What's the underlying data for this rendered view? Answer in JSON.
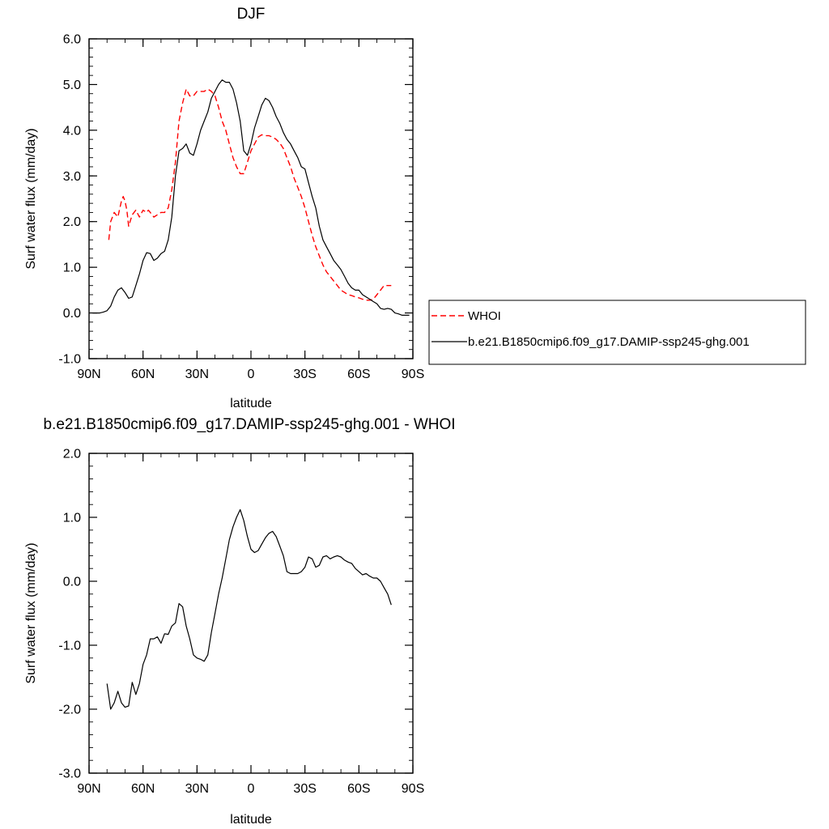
{
  "chart_data": [
    {
      "type": "line",
      "title": "DJF",
      "xlabel": "latitude",
      "ylabel": "Surf water flux (mm/day)",
      "xlim": [
        90,
        -90
      ],
      "ylim": [
        -1.0,
        6.0
      ],
      "x_ticks": [
        90,
        60,
        30,
        0,
        -30,
        -60,
        -90
      ],
      "x_tick_labels": [
        "90N",
        "60N",
        "30N",
        "0",
        "30S",
        "60S",
        "90S"
      ],
      "y_ticks": [
        -1.0,
        0.0,
        1.0,
        2.0,
        3.0,
        4.0,
        5.0,
        6.0
      ],
      "y_tick_labels": [
        "-1.0",
        "0.0",
        "1.0",
        "2.0",
        "3.0",
        "4.0",
        "5.0",
        "6.0"
      ],
      "grid": false,
      "legend_position": "right",
      "series": [
        {
          "name": "WHOI",
          "color": "#ff0000",
          "dash": "dashed",
          "x": [
            79,
            78,
            76,
            74,
            72,
            71,
            70,
            69,
            68,
            66,
            64,
            62,
            60,
            58,
            57,
            56,
            54,
            52,
            50,
            48,
            46,
            44,
            42,
            40,
            38,
            36,
            34,
            32,
            30,
            28,
            26,
            24,
            22,
            20,
            18,
            16,
            14,
            12,
            10,
            8,
            6,
            4,
            2,
            0,
            -2,
            -4,
            -6,
            -8,
            -10,
            -12,
            -14,
            -16,
            -18,
            -20,
            -22,
            -24,
            -26,
            -28,
            -30,
            -32,
            -34,
            -36,
            -38,
            -40,
            -42,
            -44,
            -46,
            -48,
            -50,
            -52,
            -54,
            -56,
            -58,
            -60,
            -62,
            -64,
            -66,
            -68,
            -70,
            -72,
            -74,
            -76,
            -78
          ],
          "y": [
            1.6,
            2.0,
            2.2,
            2.1,
            2.45,
            2.55,
            2.45,
            2.25,
            1.9,
            2.15,
            2.25,
            2.1,
            2.25,
            2.2,
            2.25,
            2.2,
            2.1,
            2.15,
            2.2,
            2.2,
            2.3,
            2.7,
            3.3,
            4.2,
            4.6,
            4.9,
            4.75,
            4.75,
            4.85,
            4.85,
            4.85,
            4.9,
            4.85,
            4.75,
            4.5,
            4.2,
            4.0,
            3.7,
            3.4,
            3.2,
            3.05,
            3.05,
            3.3,
            3.55,
            3.7,
            3.85,
            3.9,
            3.88,
            3.88,
            3.85,
            3.8,
            3.72,
            3.6,
            3.4,
            3.2,
            2.95,
            2.75,
            2.55,
            2.3,
            2.0,
            1.7,
            1.45,
            1.25,
            1.05,
            0.9,
            0.8,
            0.7,
            0.6,
            0.5,
            0.45,
            0.4,
            0.38,
            0.35,
            0.33,
            0.3,
            0.28,
            0.28,
            0.3,
            0.4,
            0.5,
            0.6,
            0.6,
            0.6
          ]
        },
        {
          "name": "b.e21.B1850cmip6.f09_g17.DAMIP-ssp245-ghg.001",
          "color": "#000000",
          "dash": "solid",
          "x": [
            88,
            86,
            84,
            82,
            80,
            78,
            76,
            74,
            72,
            70,
            68,
            66,
            64,
            62,
            60,
            58,
            56,
            54,
            52,
            50,
            48,
            46,
            44,
            42,
            40,
            38,
            36,
            34,
            32,
            30,
            28,
            26,
            24,
            22,
            20,
            18,
            16,
            14,
            12,
            10,
            8,
            6,
            4,
            2,
            0,
            -2,
            -4,
            -6,
            -8,
            -10,
            -12,
            -14,
            -16,
            -18,
            -20,
            -22,
            -24,
            -26,
            -28,
            -30,
            -32,
            -34,
            -36,
            -38,
            -40,
            -42,
            -44,
            -46,
            -48,
            -50,
            -52,
            -54,
            -56,
            -58,
            -60,
            -62,
            -64,
            -66,
            -68,
            -70,
            -72,
            -74,
            -76,
            -78,
            -80,
            -82,
            -84,
            -86,
            -88
          ],
          "y": [
            0.0,
            0.0,
            0.0,
            0.02,
            0.05,
            0.15,
            0.35,
            0.5,
            0.55,
            0.45,
            0.32,
            0.35,
            0.6,
            0.85,
            1.15,
            1.32,
            1.3,
            1.15,
            1.2,
            1.3,
            1.35,
            1.6,
            2.1,
            3.0,
            3.55,
            3.6,
            3.7,
            3.5,
            3.45,
            3.7,
            4.0,
            4.2,
            4.4,
            4.7,
            4.85,
            5.0,
            5.1,
            5.05,
            5.05,
            4.9,
            4.6,
            4.2,
            3.55,
            3.45,
            3.7,
            4.05,
            4.3,
            4.55,
            4.7,
            4.65,
            4.5,
            4.3,
            4.15,
            3.95,
            3.8,
            3.7,
            3.55,
            3.4,
            3.2,
            3.15,
            2.85,
            2.55,
            2.3,
            1.9,
            1.6,
            1.45,
            1.3,
            1.15,
            1.05,
            0.95,
            0.8,
            0.65,
            0.55,
            0.5,
            0.5,
            0.4,
            0.35,
            0.3,
            0.25,
            0.2,
            0.1,
            0.08,
            0.1,
            0.08,
            0.0,
            -0.02,
            -0.05,
            -0.05,
            -0.05
          ]
        }
      ]
    },
    {
      "type": "line",
      "title": "b.e21.B1850cmip6.f09_g17.DAMIP-ssp245-ghg.001 - WHOI",
      "xlabel": "latitude",
      "ylabel": "Surf water flux (mm/day)",
      "xlim": [
        90,
        -90
      ],
      "ylim": [
        -3.0,
        2.0
      ],
      "x_ticks": [
        90,
        60,
        30,
        0,
        -30,
        -60,
        -90
      ],
      "x_tick_labels": [
        "90N",
        "60N",
        "30N",
        "0",
        "30S",
        "60S",
        "90S"
      ],
      "y_ticks": [
        -3.0,
        -2.0,
        -1.0,
        0.0,
        1.0,
        2.0
      ],
      "y_tick_labels": [
        "-3.0",
        "-2.0",
        "-1.0",
        "0.0",
        "1.0",
        "2.0"
      ],
      "grid": false,
      "series": [
        {
          "color": "#000000",
          "dash": "solid",
          "x": [
            80,
            78,
            76,
            74,
            72,
            70,
            68,
            66,
            64,
            62,
            60,
            58,
            56,
            54,
            52,
            50,
            48,
            46,
            44,
            42,
            40,
            38,
            36,
            34,
            32,
            30,
            28,
            26,
            24,
            22,
            20,
            18,
            16,
            14,
            12,
            10,
            8,
            6,
            4,
            2,
            0,
            -2,
            -4,
            -6,
            -8,
            -10,
            -12,
            -14,
            -16,
            -18,
            -20,
            -22,
            -24,
            -26,
            -28,
            -30,
            -32,
            -34,
            -36,
            -38,
            -40,
            -42,
            -44,
            -46,
            -48,
            -50,
            -52,
            -54,
            -56,
            -58,
            -60,
            -62,
            -64,
            -66,
            -68,
            -70,
            -72,
            -74,
            -76,
            -78
          ],
          "y": [
            -1.6,
            -2.0,
            -1.9,
            -1.72,
            -1.9,
            -1.97,
            -1.95,
            -1.58,
            -1.77,
            -1.6,
            -1.3,
            -1.15,
            -0.9,
            -0.9,
            -0.87,
            -0.97,
            -0.82,
            -0.83,
            -0.7,
            -0.65,
            -0.35,
            -0.4,
            -0.7,
            -0.9,
            -1.15,
            -1.2,
            -1.22,
            -1.25,
            -1.15,
            -0.8,
            -0.5,
            -0.2,
            0.05,
            0.35,
            0.65,
            0.85,
            1.0,
            1.12,
            0.95,
            0.7,
            0.5,
            0.45,
            0.48,
            0.58,
            0.68,
            0.75,
            0.78,
            0.7,
            0.55,
            0.4,
            0.15,
            0.12,
            0.12,
            0.12,
            0.15,
            0.22,
            0.38,
            0.35,
            0.22,
            0.25,
            0.38,
            0.4,
            0.35,
            0.38,
            0.4,
            0.38,
            0.33,
            0.3,
            0.28,
            0.2,
            0.15,
            0.1,
            0.12,
            0.08,
            0.05,
            0.05,
            0.0,
            -0.1,
            -0.2,
            -0.37
          ]
        }
      ]
    }
  ]
}
